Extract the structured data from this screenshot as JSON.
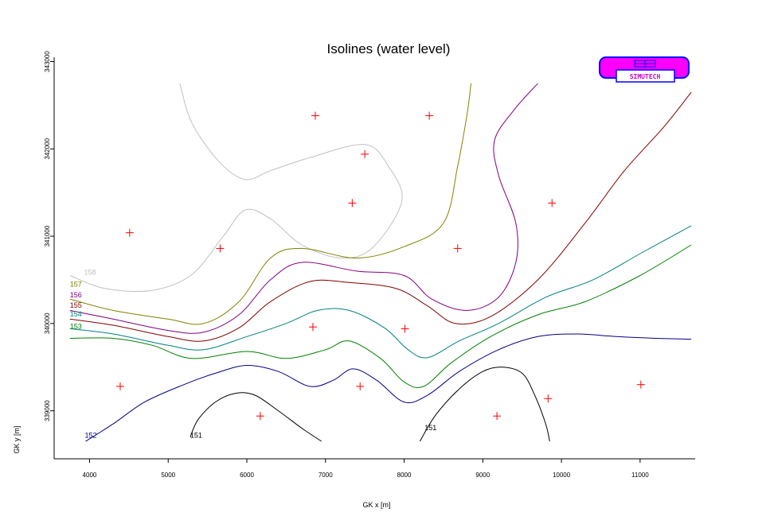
{
  "chart_data": {
    "type": "contour",
    "title": "Isolines (water level)",
    "xlabel": "GK x [m]",
    "ylabel": "GK y [m]",
    "xlim": [
      3550,
      11700
    ],
    "ylim": [
      338450,
      343050
    ],
    "x_ticks": [
      4000,
      5000,
      6000,
      7000,
      8000,
      9000,
      10000,
      11000
    ],
    "y_ticks": [
      339000,
      340000,
      341000,
      342000,
      343000
    ],
    "grid": false,
    "isolines": [
      {
        "level": "158",
        "label_text": "158",
        "color": "#c0c0c0",
        "x": [
          3750,
          4200,
          4800,
          5300,
          5700,
          5980,
          6300,
          6700,
          7200,
          7600,
          7970,
          7800,
          7500,
          6800,
          6300,
          5980,
          5650,
          5300,
          5150
        ],
        "y": [
          340550,
          340400,
          340380,
          340560,
          341000,
          341300,
          341200,
          340900,
          340750,
          340870,
          341400,
          341800,
          342050,
          341900,
          341750,
          341650,
          341850,
          342300,
          342750
        ]
      },
      {
        "level": "157",
        "label_text": "157",
        "color": "#808000",
        "x": [
          3750,
          4300,
          5000,
          5450,
          5900,
          6300,
          6700,
          7400,
          8000,
          8500,
          8680,
          8800,
          8850
        ],
        "y": [
          340280,
          340150,
          340050,
          340000,
          340250,
          340750,
          340860,
          340750,
          340880,
          341150,
          341800,
          342400,
          342750
        ]
      },
      {
        "level": "156",
        "label_text": "156",
        "color": "#800080",
        "x": [
          3750,
          4300,
          5000,
          5450,
          5900,
          6300,
          6700,
          7400,
          8000,
          8350,
          8800,
          9200,
          9420,
          9420,
          9200,
          9150,
          9400,
          9700
        ],
        "y": [
          340150,
          340050,
          339920,
          339900,
          340100,
          340500,
          340700,
          340600,
          340550,
          340280,
          340150,
          340300,
          340700,
          341150,
          341700,
          342100,
          342450,
          342750
        ]
      },
      {
        "level": "155",
        "label_text": "155",
        "color": "#800000",
        "x": [
          3750,
          4300,
          5000,
          5450,
          5900,
          6300,
          6800,
          7300,
          7900,
          8300,
          8650,
          9100,
          9700,
          10300,
          10800,
          11300,
          11650
        ],
        "y": [
          340050,
          339980,
          339850,
          339800,
          339950,
          340250,
          340480,
          340470,
          340400,
          340200,
          340000,
          340080,
          340500,
          341150,
          341750,
          342250,
          342650
        ]
      },
      {
        "level": "154",
        "label_text": "154",
        "color": "#008080",
        "x": [
          3750,
          4300,
          5000,
          5450,
          6000,
          6500,
          6900,
          7300,
          7750,
          8050,
          8300,
          8700,
          9200,
          9800,
          10400,
          11000,
          11650
        ],
        "y": [
          339940,
          339880,
          339750,
          339700,
          339850,
          340000,
          340150,
          340150,
          339950,
          339700,
          339610,
          339800,
          340000,
          340300,
          340500,
          340800,
          341120
        ]
      },
      {
        "level": "153",
        "label_text": "153",
        "color": "#008000",
        "x": [
          3750,
          4300,
          4800,
          5300,
          6000,
          6500,
          7000,
          7300,
          7700,
          8000,
          8250,
          8600,
          9100,
          9700,
          10300,
          11000,
          11650
        ],
        "y": [
          339830,
          339830,
          339750,
          339600,
          339680,
          339600,
          339700,
          339800,
          339600,
          339330,
          339280,
          339550,
          339850,
          340100,
          340250,
          340550,
          340900
        ]
      },
      {
        "level": "152",
        "label_text": "152",
        "color": "#000080",
        "x": [
          3950,
          4300,
          4700,
          5200,
          5600,
          6000,
          6400,
          6800,
          7100,
          7350,
          7650,
          8000,
          8300,
          8700,
          9200,
          9700,
          10200,
          10700,
          11200,
          11650
        ],
        "y": [
          338650,
          338850,
          339100,
          339300,
          339430,
          339520,
          339450,
          339280,
          339350,
          339480,
          339350,
          339100,
          339180,
          339450,
          339700,
          339850,
          339880,
          339850,
          339830,
          339820
        ]
      },
      {
        "level": "151",
        "label_text": "151",
        "color": "#000000",
        "x": [
          5280,
          5380,
          5600,
          5850,
          6100,
          6400,
          6700,
          6950
        ],
        "y": [
          338700,
          338900,
          339100,
          339200,
          339180,
          339000,
          338800,
          338650
        ]
      },
      {
        "level": "151",
        "label_text": "151",
        "color": "#000000",
        "x": [
          8200,
          8400,
          8700,
          9000,
          9250,
          9500,
          9650,
          9800,
          9850
        ],
        "y": [
          338650,
          338950,
          339250,
          339450,
          339500,
          339430,
          339200,
          338850,
          338650
        ]
      }
    ],
    "isoline_label_positions": [
      {
        "text": "158",
        "x": 3930,
        "y": 340560,
        "color": "#c0c0c0"
      },
      {
        "text": "157",
        "x": 3750,
        "y": 340420,
        "color": "#808000"
      },
      {
        "text": "156",
        "x": 3750,
        "y": 340300,
        "color": "#800080"
      },
      {
        "text": "155",
        "x": 3750,
        "y": 340180,
        "color": "#800000"
      },
      {
        "text": "154",
        "x": 3750,
        "y": 340080,
        "color": "#008080"
      },
      {
        "text": "153",
        "x": 3750,
        "y": 339940,
        "color": "#008000"
      },
      {
        "text": "152",
        "x": 3940,
        "y": 338690,
        "color": "#000080"
      },
      {
        "text": "151",
        "x": 5280,
        "y": 338690,
        "color": "#000000"
      },
      {
        "text": "151",
        "x": 8260,
        "y": 338780,
        "color": "#000000"
      }
    ],
    "wells": {
      "color": "#ff0000",
      "x": [
        6870,
        8320,
        7500,
        7340,
        8680,
        9880,
        4510,
        5660,
        6840,
        8010,
        4390,
        7440,
        6170,
        9180,
        9830,
        11010
      ],
      "y": [
        342380,
        342380,
        341940,
        341380,
        340860,
        341380,
        341040,
        340860,
        339960,
        339940,
        339280,
        339280,
        338940,
        338940,
        339140,
        339300
      ]
    }
  },
  "logo": {
    "text": "SIMUTECH",
    "fill_color": "#ff00ff",
    "border_color": "#0000ff"
  }
}
